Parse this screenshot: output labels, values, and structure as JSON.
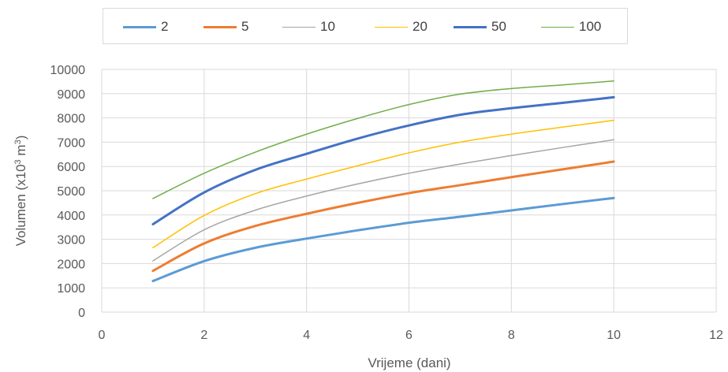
{
  "chart_data": {
    "type": "line",
    "title": "",
    "xlabel": "Vrijeme (dani)",
    "ylabel_prefix": "Volumen (x10",
    "ylabel_sup1": "3",
    "ylabel_mid": " m",
    "ylabel_sup2": "3",
    "ylabel_suffix": ")",
    "xlim": [
      0,
      12
    ],
    "ylim": [
      0,
      10000
    ],
    "x_ticks": [
      0,
      2,
      4,
      6,
      8,
      10,
      12
    ],
    "y_ticks": [
      0,
      1000,
      2000,
      3000,
      4000,
      5000,
      6000,
      7000,
      8000,
      9000,
      10000
    ],
    "grid": true,
    "legend_position": "top",
    "x": [
      1,
      2,
      3,
      4,
      5,
      6,
      7,
      8,
      9,
      10
    ],
    "series": [
      {
        "name": "2",
        "color": "#5b9bd5",
        "width": 3,
        "values": [
          1280,
          2100,
          2650,
          3030,
          3370,
          3680,
          3930,
          4190,
          4450,
          4700
        ]
      },
      {
        "name": "5",
        "color": "#ed7d31",
        "width": 3,
        "values": [
          1700,
          2830,
          3550,
          4050,
          4500,
          4900,
          5230,
          5560,
          5880,
          6200
        ]
      },
      {
        "name": "10",
        "color": "#a5a5a5",
        "width": 1.5,
        "values": [
          2110,
          3390,
          4200,
          4780,
          5280,
          5720,
          6100,
          6450,
          6780,
          7100
        ]
      },
      {
        "name": "20",
        "color": "#ffc000",
        "width": 1.5,
        "values": [
          2650,
          3980,
          4880,
          5480,
          6030,
          6560,
          7000,
          7330,
          7620,
          7900
        ]
      },
      {
        "name": "50",
        "color": "#4472c4",
        "width": 3,
        "values": [
          3620,
          4930,
          5860,
          6520,
          7150,
          7690,
          8130,
          8400,
          8620,
          8850
        ]
      },
      {
        "name": "100",
        "color": "#70ad47",
        "width": 1.5,
        "values": [
          4680,
          5720,
          6590,
          7330,
          7980,
          8550,
          8980,
          9210,
          9360,
          9520
        ]
      }
    ]
  }
}
